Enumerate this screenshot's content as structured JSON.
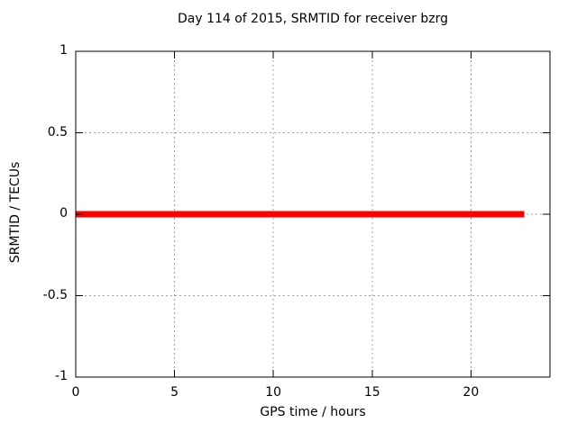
{
  "title": "Day 114 of 2015, SRMTID for receiver bzrg",
  "chart_data": {
    "type": "line",
    "title": "Day 114 of 2015, SRMTID for receiver bzrg",
    "xlabel": "GPS time / hours",
    "ylabel": "SRMTID / TECUs",
    "xlim": [
      0,
      24
    ],
    "ylim": [
      -1,
      1
    ],
    "xticks": [
      0,
      5,
      10,
      15,
      20
    ],
    "yticks": [
      -1,
      -0.5,
      0,
      0.5,
      1
    ],
    "grid": true,
    "grid_style": "dashed",
    "legend": "none",
    "series": [
      {
        "name": "SRMTID",
        "color": "#ff0000",
        "linewidth": 7,
        "x": [
          0,
          22.7
        ],
        "y": [
          0,
          0
        ]
      }
    ]
  },
  "colors": {
    "background": "#ffffff",
    "axis": "#000000",
    "grid": "#a0a0a0",
    "series": "#ff0000",
    "text": "#000000"
  }
}
